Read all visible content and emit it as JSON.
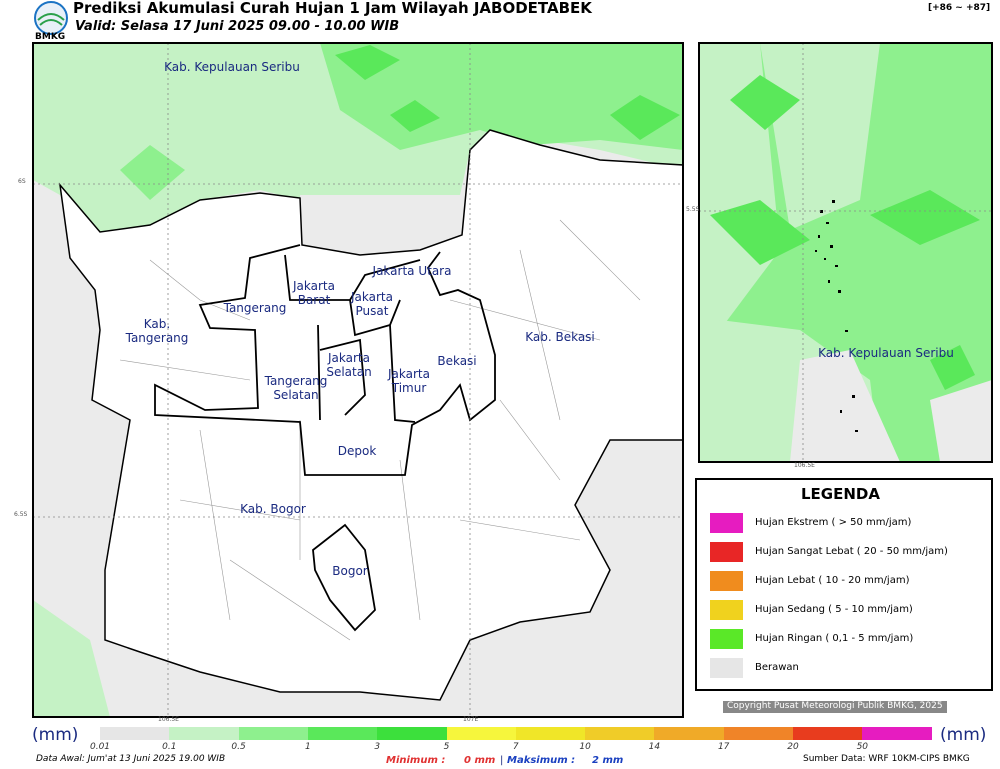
{
  "header": {
    "logo": "BMKG",
    "title": "Prediksi Akumulasi Curah Hujan 1 Jam Wilayah JABODETABEK",
    "valid": "Valid: Selasa 17 Juni 2025 09.00 - 10.00 WIB",
    "range": "[+86 ~ +87]"
  },
  "map": {
    "labels": [
      "Kab. Kepulauan Seribu",
      "Jakarta Utara",
      "Jakarta\nBarat",
      "Jakarta\nPusat",
      "Tangerang",
      "Kab.\nTangerang",
      "Kab. Bekasi",
      "Bekasi",
      "Jakarta\nSelatan",
      "Jakarta\nTimur",
      "Tangerang\nSelatan",
      "Depok",
      "Kab. Bogor",
      "Bogor"
    ],
    "lat_labels": [
      "6S",
      "6.5S"
    ],
    "lon_labels": [
      "106.5E",
      "107E"
    ]
  },
  "inset": {
    "label": "Kab. Kepulauan Seribu",
    "lat_label": "5.5S",
    "lon_label": "106.5E"
  },
  "legend": {
    "title": "LEGENDA",
    "items": [
      "Hujan Ekstrem ( > 50 mm/jam)",
      "Hujan Sangat Lebat ( 20 - 50 mm/jam)",
      "Hujan Lebat ( 10 - 20 mm/jam)",
      "Hujan Sedang ( 5 - 10 mm/jam)",
      "Hujan Ringan ( 0,1 - 5 mm/jam)",
      "Berawan"
    ]
  },
  "copyright": "Copyright Pusat Meteorologi Publik BMKG, 2025",
  "colorbar": {
    "unit_left": "(mm)",
    "unit_right": "(mm)",
    "ticks": [
      "0.01",
      "0.1",
      "0.5",
      "1",
      "3",
      "5",
      "7",
      "10",
      "14",
      "17",
      "20",
      "50"
    ]
  },
  "footer": {
    "data_awal": "Data Awal: Jum'at 13 Juni 2025 19.00 WIB",
    "min_label": "Minimum :",
    "min_value": "0 mm",
    "separator": "|",
    "max_label": "Maksimum :",
    "max_value": "2 mm",
    "source": "Sumber Data: WRF 10KM-CIPS BMKG"
  }
}
